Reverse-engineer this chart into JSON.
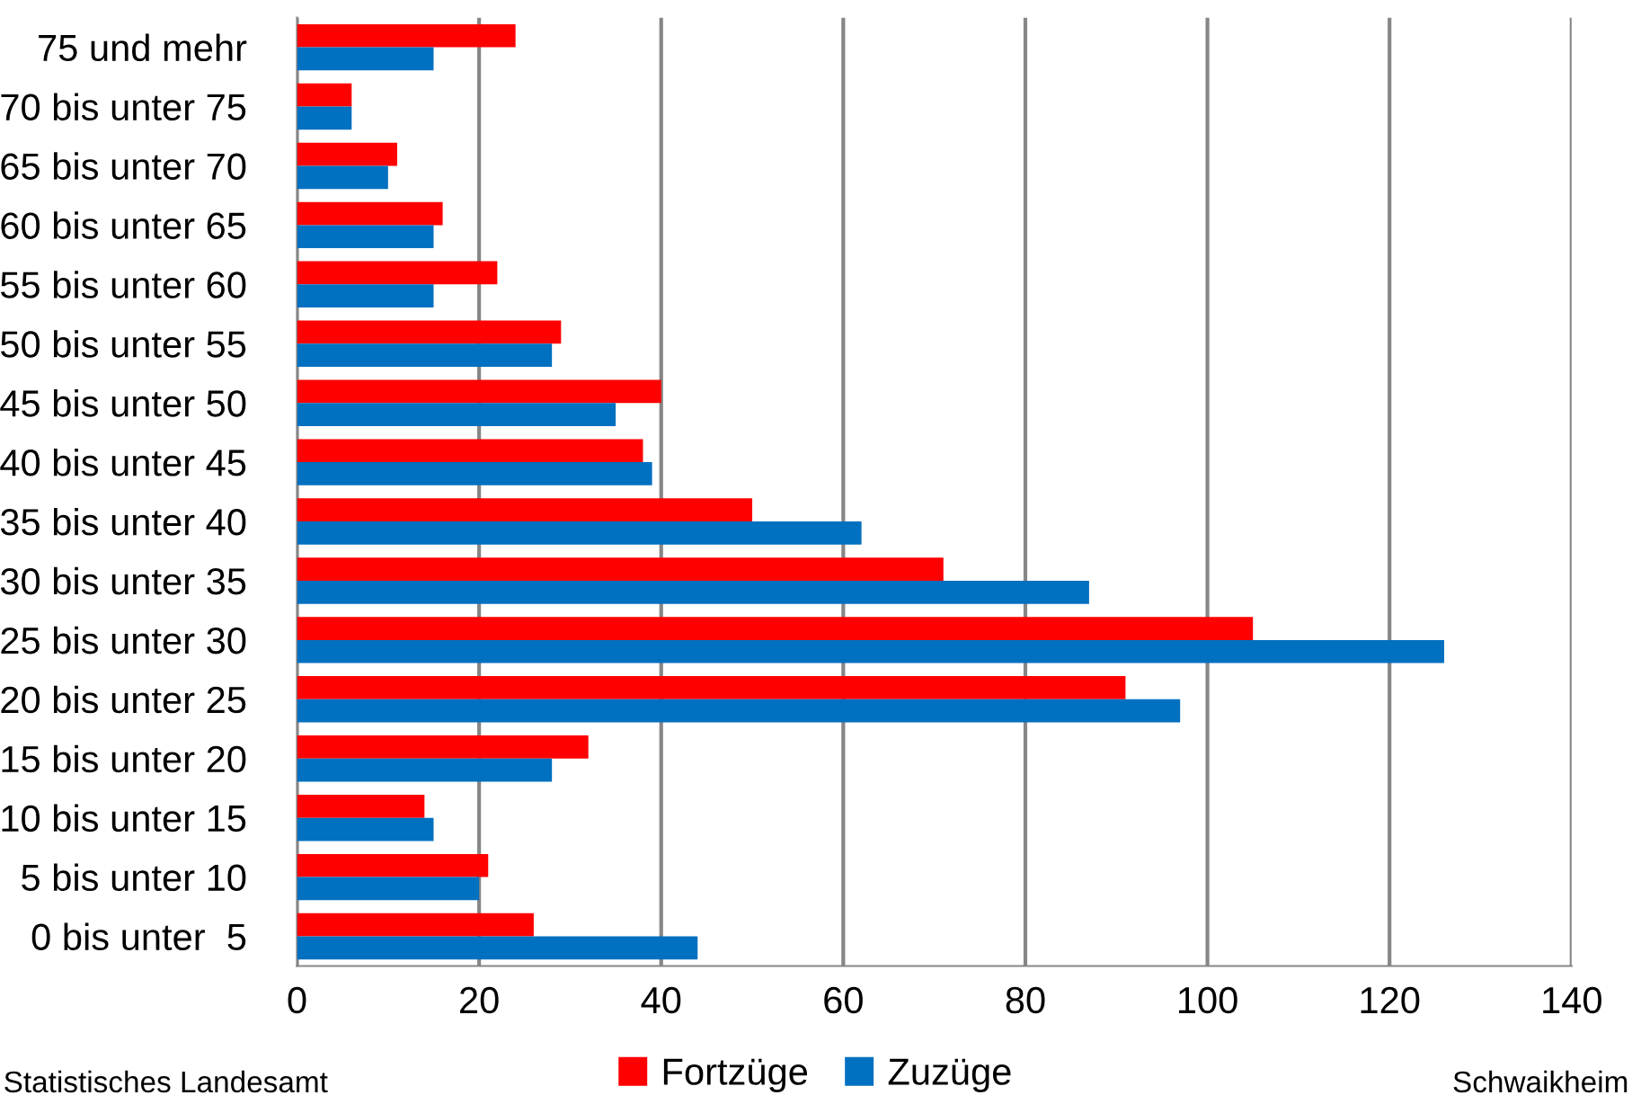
{
  "chart_data": {
    "type": "bar",
    "orientation": "horizontal",
    "categories": [
      "75 und mehr",
      "70 bis unter 75",
      "65 bis unter 70",
      "60 bis unter 65",
      "55 bis unter 60",
      "50 bis unter 55",
      "45 bis unter 50",
      "40 bis unter 45",
      "35 bis unter 40",
      "30 bis unter 35",
      "25 bis unter 30",
      "20 bis unter 25",
      "15 bis unter 20",
      "10 bis unter 15",
      "5 bis unter 10",
      "0 bis unter  5"
    ],
    "series": [
      {
        "name": "Fortzüge",
        "color": "#ff0000",
        "values": [
          24,
          6,
          11,
          16,
          22,
          29,
          40,
          38,
          50,
          71,
          105,
          91,
          32,
          14,
          21,
          26
        ]
      },
      {
        "name": "Zuzüge",
        "color": "#0070c0",
        "values": [
          15,
          6,
          10,
          15,
          15,
          28,
          35,
          39,
          62,
          87,
          126,
          97,
          28,
          15,
          20,
          44
        ]
      }
    ],
    "xlim": [
      0,
      140
    ],
    "xticks": [
      0,
      20,
      40,
      60,
      80,
      100,
      120,
      140
    ],
    "grid": "x",
    "legend": "bottom",
    "annotations": [
      "Statistisches Landesamt",
      "Schwaikheim"
    ]
  }
}
